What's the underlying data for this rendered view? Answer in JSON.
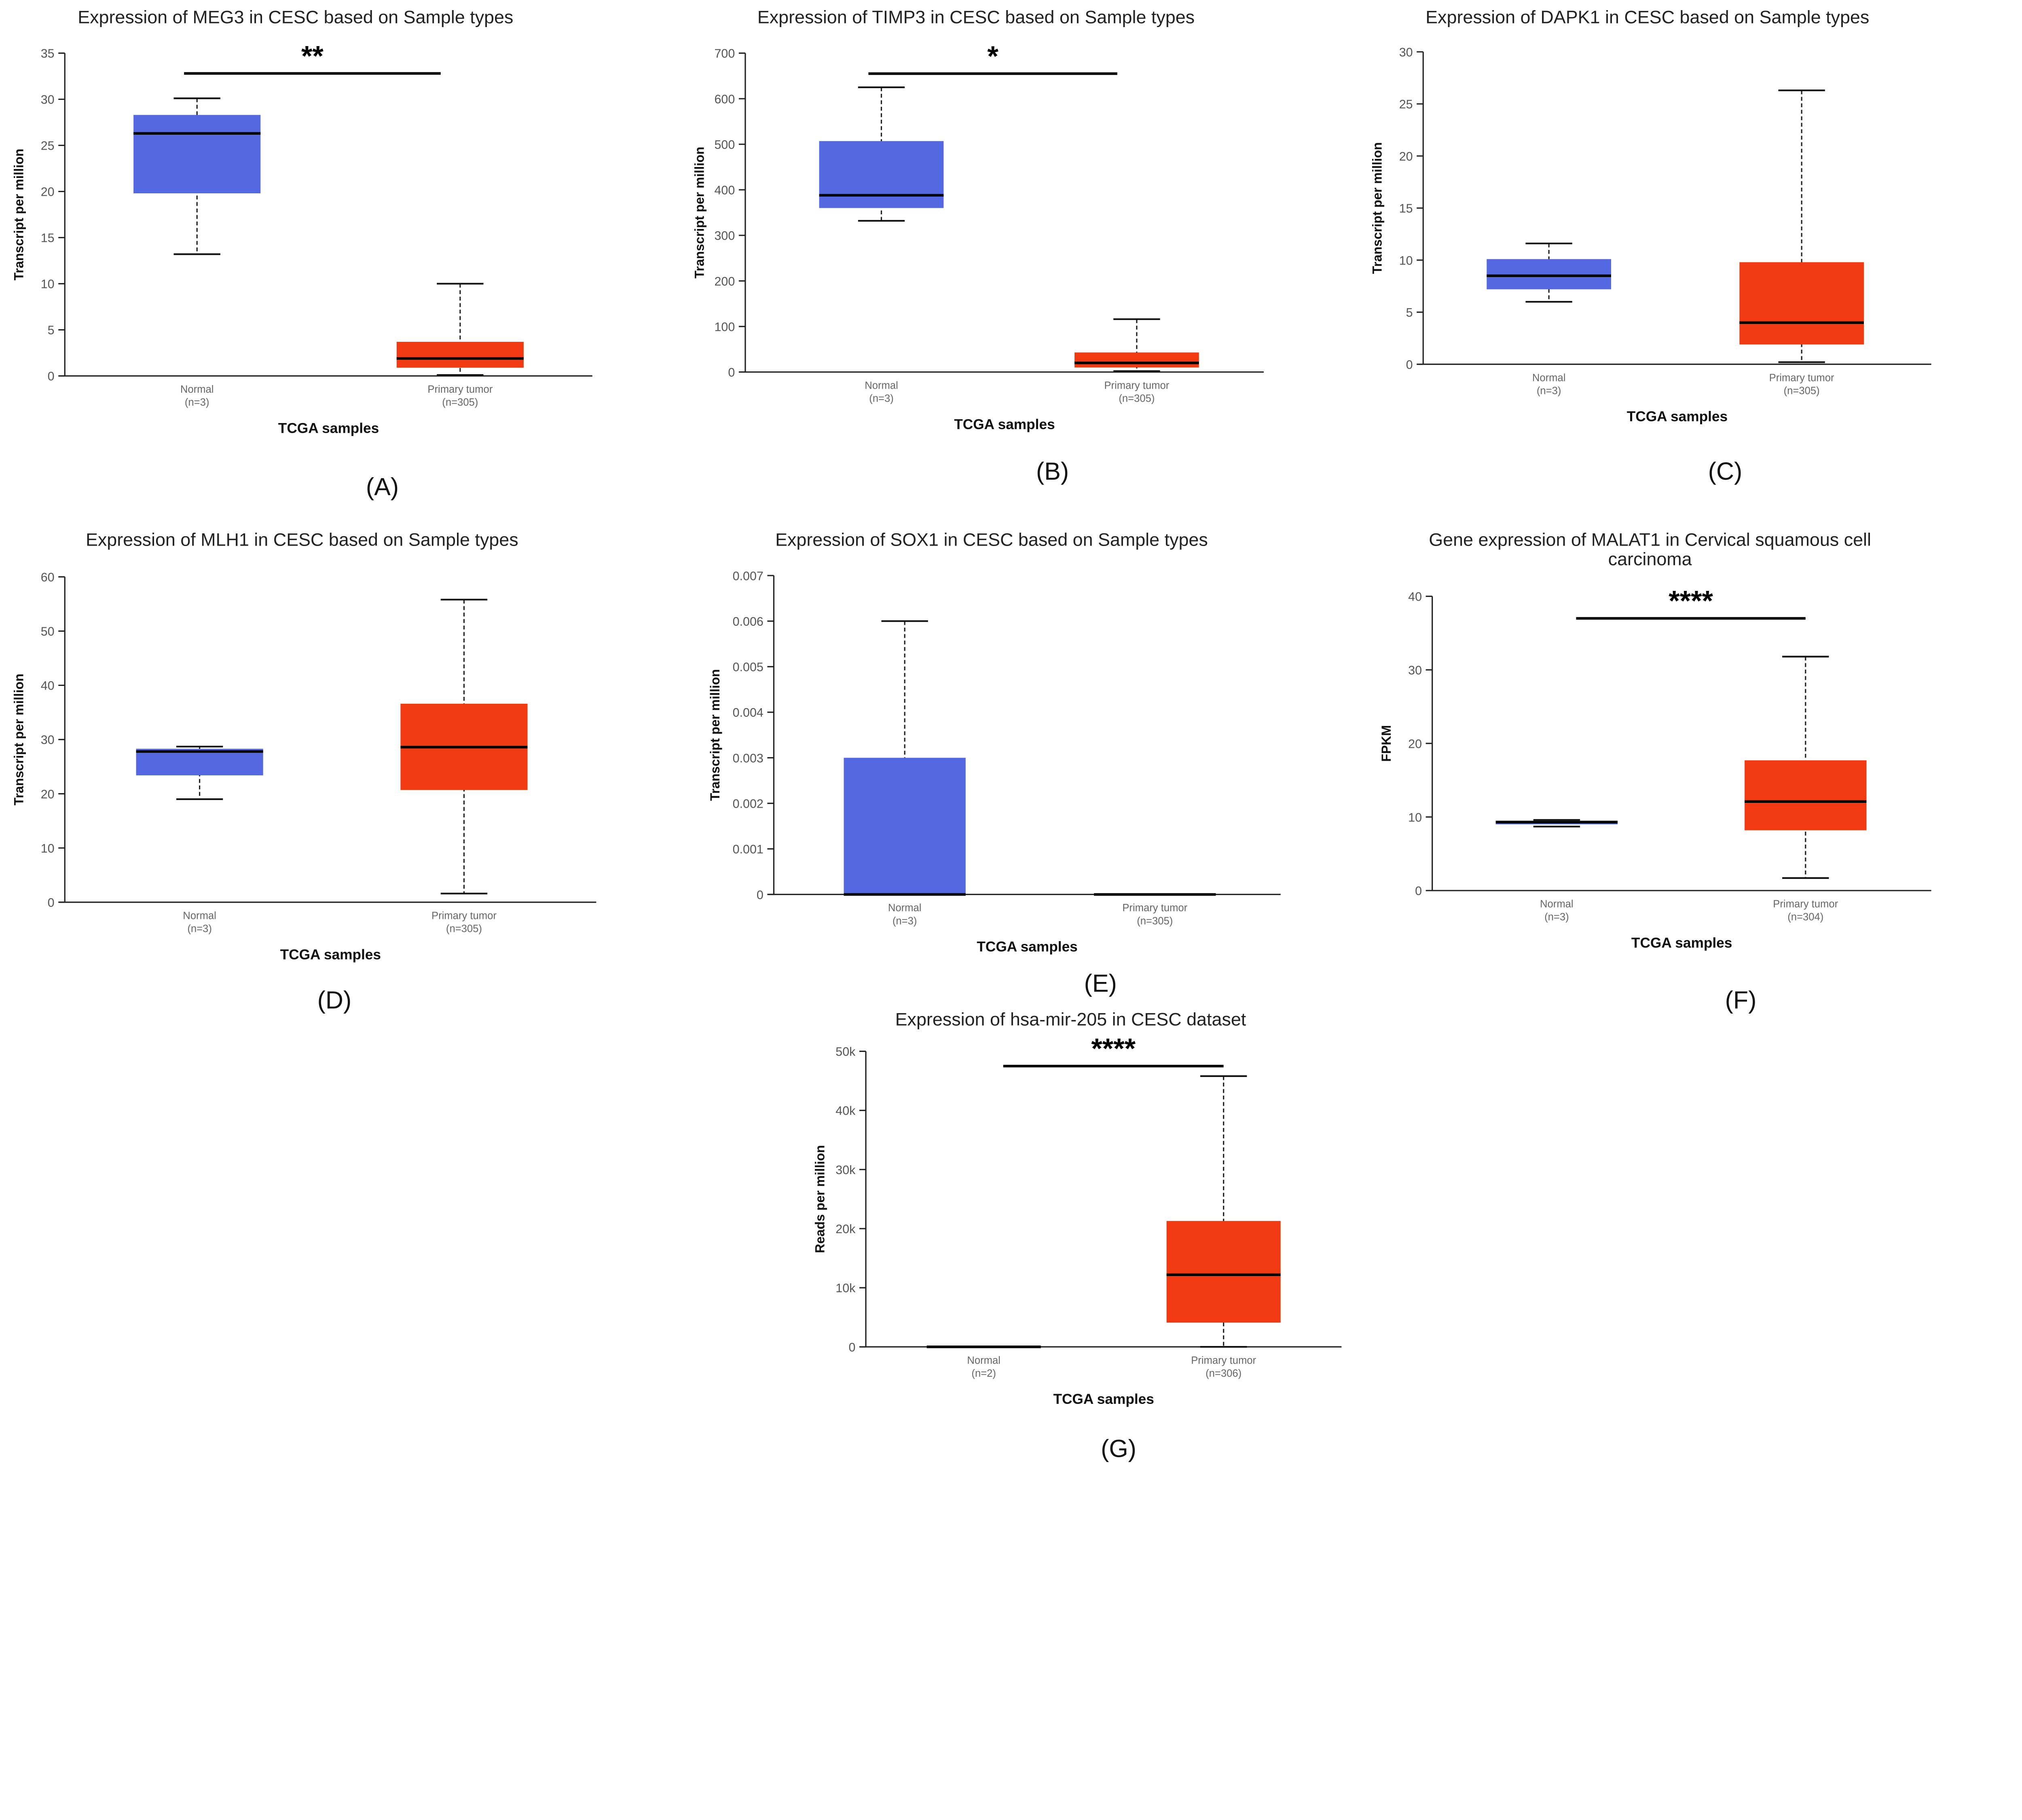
{
  "chart_data": [
    {
      "type": "box",
      "panel_label": "(A)",
      "title": [
        "Expression of MEG3 in CESC based on Sample types"
      ],
      "ylabel": "Transcript per million",
      "xlabel": "TCGA samples",
      "ylim": [
        0,
        35
      ],
      "yticks": [
        0,
        5,
        10,
        15,
        20,
        25,
        30,
        35
      ],
      "ytick_labels": [
        "0",
        "5",
        "10",
        "15",
        "20",
        "25",
        "30",
        "35"
      ],
      "categories": [
        {
          "name": "Normal",
          "n": "(n=3)",
          "color": "#5468e2",
          "stats": {
            "min": 13.2,
            "q1": 19.8,
            "median": 26.3,
            "q3": 28.3,
            "max": 30.1
          }
        },
        {
          "name": "Primary tumor",
          "n": "(n=305)",
          "color": "#f23a12",
          "stats": {
            "min": 0.1,
            "q1": 0.9,
            "median": 1.9,
            "q3": 3.7,
            "max": 10
          }
        }
      ],
      "significance": {
        "label": "**",
        "y": 32.8
      }
    },
    {
      "type": "box",
      "panel_label": "(B)",
      "title": [
        "Expression of TIMP3 in CESC based on Sample types"
      ],
      "ylabel": "Transcript per million",
      "xlabel": "TCGA samples",
      "ylim": [
        0,
        700
      ],
      "yticks": [
        0,
        100,
        200,
        300,
        400,
        500,
        600,
        700
      ],
      "ytick_labels": [
        "0",
        "100",
        "200",
        "300",
        "400",
        "500",
        "600",
        "700"
      ],
      "categories": [
        {
          "name": "Normal",
          "n": "(n=3)",
          "color": "#5468e2",
          "stats": {
            "min": 332,
            "q1": 360,
            "median": 388,
            "q3": 507,
            "max": 625
          }
        },
        {
          "name": "Primary tumor",
          "n": "(n=305)",
          "color": "#f23a12",
          "stats": {
            "min": 2,
            "q1": 10,
            "median": 20,
            "q3": 43,
            "max": 116
          }
        }
      ],
      "significance": {
        "label": "*",
        "y": 655
      }
    },
    {
      "type": "box",
      "panel_label": "(C)",
      "title": [
        "Expression of DAPK1 in CESC based on Sample types"
      ],
      "ylabel": "Transcript per million",
      "xlabel": "TCGA samples",
      "ylim": [
        0,
        30
      ],
      "yticks": [
        0,
        5,
        10,
        15,
        20,
        25,
        30
      ],
      "ytick_labels": [
        "0",
        "5",
        "10",
        "15",
        "20",
        "25",
        "30"
      ],
      "categories": [
        {
          "name": "Normal",
          "n": "(n=3)",
          "color": "#5468e2",
          "stats": {
            "min": 6,
            "q1": 7.2,
            "median": 8.5,
            "q3": 10.1,
            "max": 11.6
          }
        },
        {
          "name": "Primary tumor",
          "n": "(n=305)",
          "color": "#f23a12",
          "stats": {
            "min": 0.2,
            "q1": 1.9,
            "median": 4,
            "q3": 9.8,
            "max": 26.3
          }
        }
      ],
      "significance": null
    },
    {
      "type": "box",
      "panel_label": "(D)",
      "title": [
        "Expression of MLH1 in CESC based on Sample types"
      ],
      "ylabel": "Transcript per million",
      "xlabel": "TCGA samples",
      "ylim": [
        0,
        60
      ],
      "yticks": [
        0,
        10,
        20,
        30,
        40,
        50,
        60
      ],
      "ytick_labels": [
        "0",
        "10",
        "20",
        "30",
        "40",
        "50",
        "60"
      ],
      "categories": [
        {
          "name": "Normal",
          "n": "(n=3)",
          "color": "#5468e2",
          "stats": {
            "min": 19,
            "q1": 23.4,
            "median": 27.8,
            "q3": 28.3,
            "max": 28.7
          }
        },
        {
          "name": "Primary tumor",
          "n": "(n=305)",
          "color": "#f23a12",
          "stats": {
            "min": 1.6,
            "q1": 20.7,
            "median": 28.6,
            "q3": 36.6,
            "max": 55.8
          }
        }
      ],
      "significance": null
    },
    {
      "type": "box",
      "panel_label": "(E)",
      "title": [
        "Expression of SOX1 in CESC based on Sample types"
      ],
      "ylabel": "Transcript per million",
      "xlabel": "TCGA samples",
      "ylim": [
        0,
        0.007
      ],
      "yticks": [
        0,
        0.001,
        0.002,
        0.003,
        0.004,
        0.005,
        0.006,
        0.007
      ],
      "ytick_labels": [
        "0",
        "0.001",
        "0.002",
        "0.003",
        "0.004",
        "0.005",
        "0.006",
        "0.007"
      ],
      "categories": [
        {
          "name": "Normal",
          "n": "(n=3)",
          "color": "#5468e2",
          "stats": {
            "min": 0,
            "q1": 0,
            "median": 0,
            "q3": 0.003,
            "max": 0.006
          }
        },
        {
          "name": "Primary tumor",
          "n": "(n=305)",
          "color": "#f23a12",
          "stats": {
            "min": 0,
            "q1": 0,
            "median": 0,
            "q3": 0,
            "max": 0
          }
        }
      ],
      "significance": null
    },
    {
      "type": "box",
      "panel_label": "(F)",
      "title": [
        "Gene expression of MALAT1 in Cervical squamous cell",
        "carcinoma"
      ],
      "ylabel": "FPKM",
      "xlabel": "TCGA samples",
      "ylim": [
        0,
        40
      ],
      "yticks": [
        0,
        10,
        20,
        30,
        40
      ],
      "ytick_labels": [
        "0",
        "10",
        "20",
        "30",
        "40"
      ],
      "categories": [
        {
          "name": "Normal",
          "n": "(n=3)",
          "color": "#5468e2",
          "stats": {
            "min": 8.7,
            "q1": 9,
            "median": 9.3,
            "q3": 9.5,
            "max": 9.6
          }
        },
        {
          "name": "Primary tumor",
          "n": "(n=304)",
          "color": "#f23a12",
          "stats": {
            "min": 1.7,
            "q1": 8.2,
            "median": 12.1,
            "q3": 17.7,
            "max": 31.8
          }
        }
      ],
      "significance": {
        "label": "****",
        "y": 37
      }
    },
    {
      "type": "box",
      "panel_label": "(G)",
      "title": [
        "Expression of hsa-mir-205 in CESC dataset"
      ],
      "ylabel": "Reads per million",
      "xlabel": "TCGA samples",
      "ylim": [
        0,
        50000
      ],
      "yticks": [
        0,
        10000,
        20000,
        30000,
        40000,
        50000
      ],
      "ytick_labels": [
        "0",
        "10k",
        "20k",
        "30k",
        "40k",
        "50k"
      ],
      "categories": [
        {
          "name": "Normal",
          "n": "(n=2)",
          "color": "#5468e2",
          "stats": {
            "min": 0,
            "q1": 0,
            "median": 0,
            "q3": 0,
            "max": 0
          }
        },
        {
          "name": "Primary tumor",
          "n": "(n=306)",
          "color": "#f23a12",
          "stats": {
            "min": 0,
            "q1": 4100,
            "median": 12200,
            "q3": 21300,
            "max": 45800
          }
        }
      ],
      "significance": {
        "label": "****",
        "y": 47500
      }
    }
  ]
}
